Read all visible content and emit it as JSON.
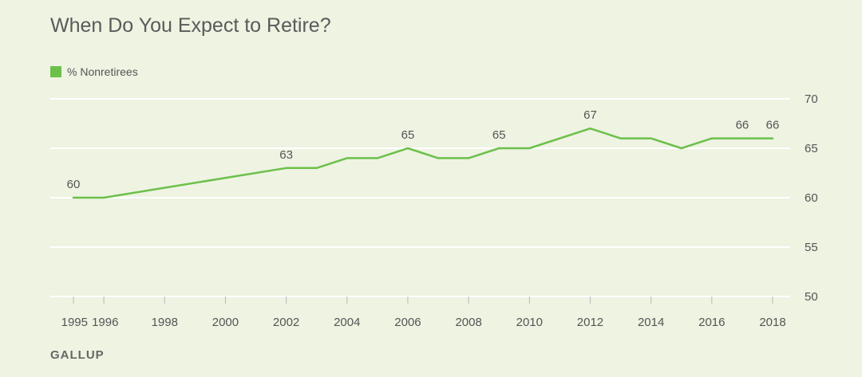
{
  "title": "When Do You Expect to Retire?",
  "source": "GALLUP",
  "colors": {
    "series": "#6cc04a",
    "background": "#eef3e2",
    "grid": "#ffffff"
  },
  "chart_data": {
    "type": "line",
    "title": "When Do You Expect to Retire?",
    "xlabel": "",
    "ylabel": "",
    "ylim": [
      50,
      70
    ],
    "yticks": [
      50,
      55,
      60,
      65,
      70
    ],
    "xticks": [
      1995,
      1996,
      1998,
      2000,
      2002,
      2004,
      2006,
      2008,
      2010,
      2012,
      2014,
      2016,
      2018
    ],
    "xlim": [
      1995,
      2018
    ],
    "grid": true,
    "legend_position": "top-left",
    "series": [
      {
        "name": "% Nonretirees",
        "x": [
          1995,
          1996,
          2002,
          2003,
          2004,
          2005,
          2006,
          2007,
          2008,
          2009,
          2010,
          2012,
          2013,
          2014,
          2015,
          2016,
          2017,
          2018
        ],
        "values": [
          60,
          60,
          63,
          63,
          64,
          64,
          65,
          64,
          64,
          65,
          65,
          67,
          66,
          66,
          65,
          66,
          66,
          66
        ]
      }
    ],
    "data_labels": [
      {
        "x": 1995,
        "value": 60
      },
      {
        "x": 2002,
        "value": 63
      },
      {
        "x": 2006,
        "value": 65
      },
      {
        "x": 2009,
        "value": 65
      },
      {
        "x": 2012,
        "value": 67
      },
      {
        "x": 2017,
        "value": 66
      },
      {
        "x": 2018,
        "value": 66
      }
    ]
  }
}
